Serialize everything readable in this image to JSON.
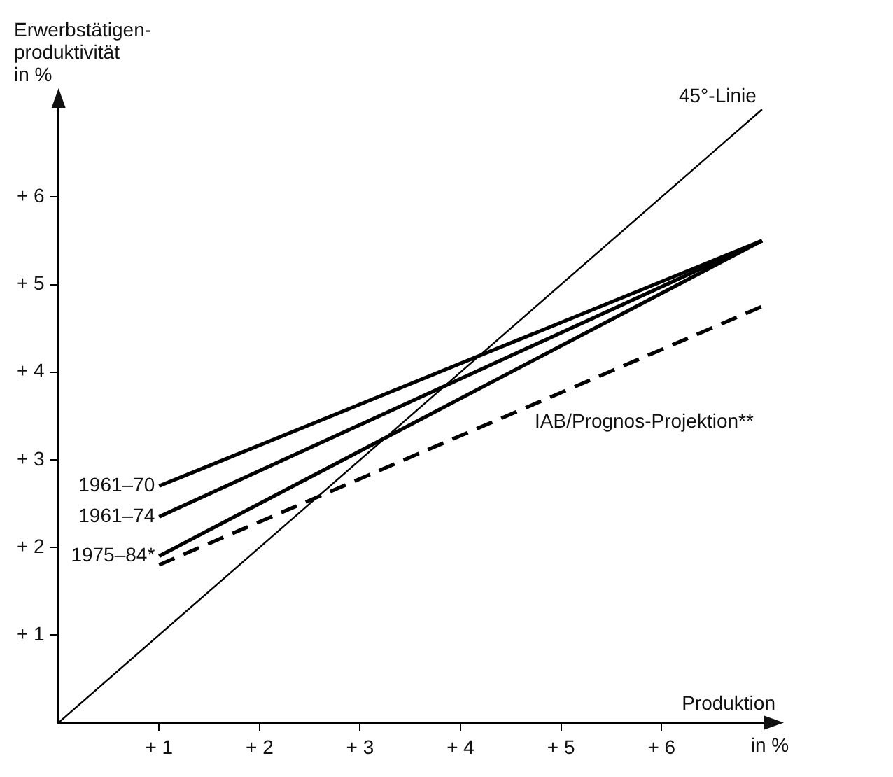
{
  "chart_data": {
    "type": "line",
    "xlabel": "Produktion",
    "ylabel": "Erwerbstätigen-\nproduktivität\nin %",
    "annotations": [
      "in %"
    ],
    "xlim": [
      0,
      7.05
    ],
    "ylim": [
      0,
      7.05
    ],
    "xticks": [
      {
        "value": 1,
        "label": "+ 1"
      },
      {
        "value": 2,
        "label": "+ 2"
      },
      {
        "value": 3,
        "label": "+ 3"
      },
      {
        "value": 4,
        "label": "+ 4"
      },
      {
        "value": 5,
        "label": "+ 5"
      },
      {
        "value": 6,
        "label": "+ 6"
      }
    ],
    "yticks": [
      {
        "value": 1,
        "label": "+ 1"
      },
      {
        "value": 2,
        "label": "+ 2"
      },
      {
        "value": 3,
        "label": "+ 3"
      },
      {
        "value": 4,
        "label": "+ 4"
      },
      {
        "value": 5,
        "label": "+ 5"
      },
      {
        "value": 6,
        "label": "+ 6"
      }
    ],
    "grid": false,
    "legend": false,
    "marker": "none",
    "series": [
      {
        "name": "45°-Linie",
        "color": "#000000",
        "x": [
          0,
          7
        ],
        "values": [
          0,
          7
        ]
      },
      {
        "name": "1961–70",
        "color": "#000000",
        "x": [
          1,
          7
        ],
        "values": [
          2.7,
          5.5
        ]
      },
      {
        "name": "1961–74",
        "color": "#000000",
        "x": [
          1,
          7
        ],
        "values": [
          2.35,
          5.5
        ]
      },
      {
        "name": "1975–84*",
        "color": "#000000",
        "x": [
          1,
          7
        ],
        "values": [
          1.9,
          5.5
        ]
      },
      {
        "name": "IAB/Prognos-Projektion**",
        "color": "#000000",
        "x": [
          1,
          7
        ],
        "values": [
          1.8,
          4.75
        ],
        "line_style": "dashed"
      }
    ]
  }
}
